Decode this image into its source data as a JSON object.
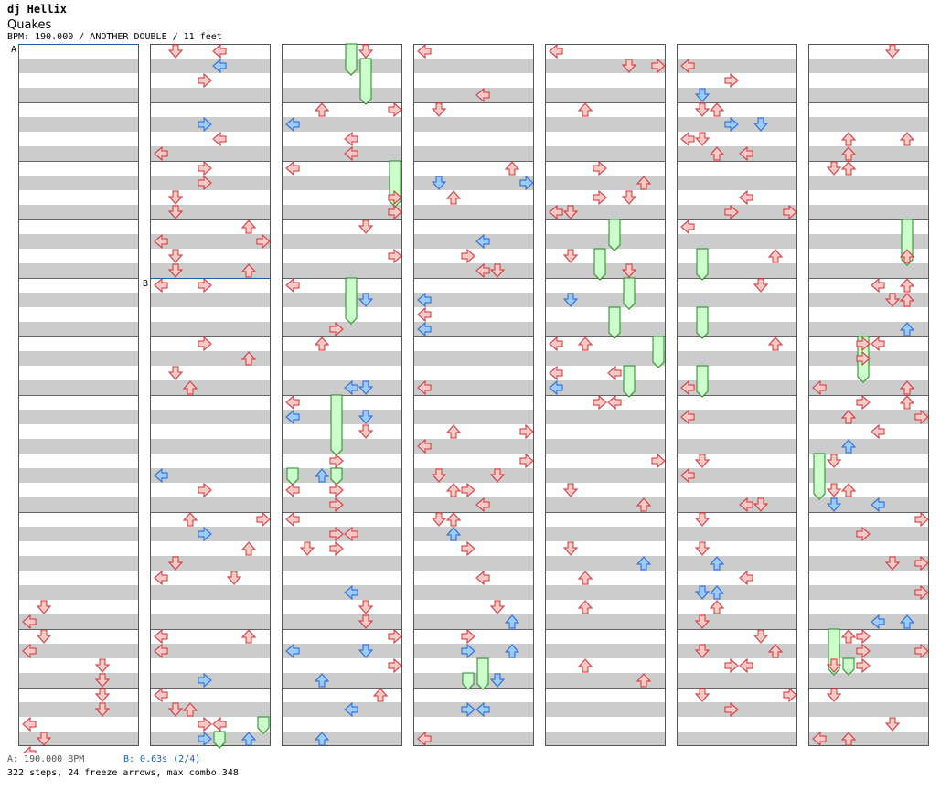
{
  "artist": "dj Hellix",
  "title": "Quakes",
  "meta": "BPM: 190.000 / ANOTHER DOUBLE / 11 feet",
  "section_markers": [
    {
      "label": "A",
      "column": 0,
      "row": 0.0
    },
    {
      "label": "B",
      "column": 1,
      "row": 16.0
    }
  ],
  "footer": {
    "bpm": "A: 190.000 BPM",
    "stop": "B: 0.63s (2/4)",
    "stats": "322 steps, 24 freeze arrows, max combo 348"
  },
  "colors": {
    "red_fill": "#ffc8c8",
    "red_stroke": "#cc3333",
    "blue_fill": "#9cc8ff",
    "blue_stroke": "#2266cc",
    "freeze_fill": "#ccffcc",
    "freeze_stroke": "#228822",
    "stripe": "#cccccc",
    "marker_line": "#1a5fb4"
  },
  "notes": [
    [
      0,
      38,
      1
    ],
    [
      0,
      39,
      0
    ],
    [
      0,
      40,
      1
    ],
    [
      0,
      41,
      0
    ],
    [
      0,
      42,
      5
    ],
    [
      0,
      43,
      5
    ],
    [
      0,
      44,
      5
    ],
    [
      0,
      45,
      5
    ],
    [
      0,
      46,
      0
    ],
    [
      0,
      47,
      1
    ],
    [
      0,
      48,
      0
    ],
    [
      0,
      49,
      1
    ],
    [
      1,
      0,
      0
    ],
    [
      1,
      1,
      0
    ],
    [
      1,
      2,
      0
    ],
    [
      1,
      3,
      0
    ],
    [
      1,
      4,
      3
    ],
    [
      1,
      5,
      2
    ],
    [
      1,
      6,
      3
    ],
    [
      1,
      7,
      3
    ],
    [
      1,
      8,
      4
    ],
    [
      1,
      9,
      3
    ],
    [
      1,
      10,
      4
    ],
    [
      1,
      11,
      3
    ],
    [
      1,
      12,
      3
    ],
    [
      1,
      13,
      3
    ],
    [
      1,
      14,
      2
    ],
    [
      1,
      15,
      0
    ],
    [
      1,
      16,
      3
    ],
    [
      1,
      17,
      4
    ],
    [
      1,
      18,
      4
    ],
    [
      1,
      19,
      3
    ],
    [
      1,
      20,
      2
    ],
    [
      1,
      20,
      3
    ],
    [
      1,
      21,
      3
    ],
    [
      1,
      22,
      3
    ],
    [
      1,
      23,
      3
    ],
    [
      1,
      24,
      4
    ],
    [
      1,
      25,
      3
    ],
    [
      1,
      25,
      3
    ],
    [
      1,
      26,
      3
    ],
    [
      1,
      27,
      3
    ],
    [
      1,
      28,
      3
    ],
    [
      1,
      29,
      4
    ],
    [
      1,
      30,
      3
    ],
    [
      1,
      31,
      3
    ],
    [
      1,
      32,
      2
    ],
    [
      1,
      33,
      3
    ],
    [
      1,
      34,
      3
    ],
    [
      1,
      35,
      3
    ],
    [
      1,
      36,
      0
    ],
    [
      1,
      37,
      3
    ],
    [
      1,
      38,
      3
    ],
    [
      1,
      39,
      3
    ],
    [
      1,
      40,
      3
    ],
    [
      1,
      41,
      3
    ],
    [
      1,
      42,
      3
    ],
    [
      1,
      43,
      3
    ],
    [
      1,
      44,
      3
    ],
    [
      1,
      45,
      3
    ],
    [
      1,
      46,
      3
    ],
    [
      1,
      47,
      4
    ],
    [
      1,
      48,
      3
    ]
  ],
  "panels": [
    {
      "id": "measure-col-1",
      "rows": 48
    },
    {
      "id": "measure-col-2",
      "rows": 48
    },
    {
      "id": "measure-col-3",
      "rows": 48
    },
    {
      "id": "measure-col-4",
      "rows": 48
    },
    {
      "id": "measure-col-5",
      "rows": 48
    },
    {
      "id": "measure-col-6",
      "rows": 48
    },
    {
      "id": "measure-col-7",
      "rows": 48
    }
  ]
}
